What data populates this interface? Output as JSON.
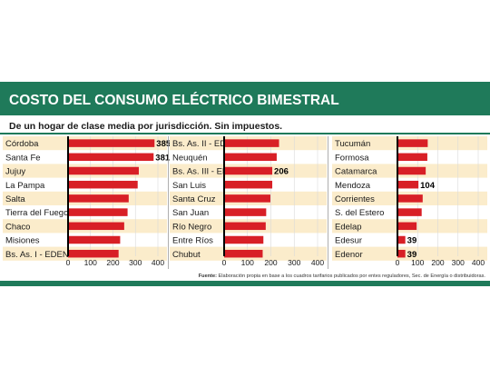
{
  "header": {
    "title": "COSTO DEL CONSUMO ELÉCTRICO BIMESTRAL",
    "subtitle": "De un hogar de clase media por jurisdicción. Sin impuestos."
  },
  "footer": {
    "source_label": "Fuente:",
    "source_text": "Elaboración propia en base a los cuadros tarifarios publicados por entes reguladores, Sec. de Energía o distribuidoras."
  },
  "colors": {
    "header_green": "#1f7a5a",
    "bar_red": "#d81f26",
    "stripe": "#fbeccb",
    "axis": "#000000"
  },
  "chart_data": [
    {
      "type": "bar",
      "orientation": "horizontal",
      "categories": [
        "Córdoba",
        "Santa Fe",
        "Jujuy",
        "La Pampa",
        "Salta",
        "Tierra del Fuego",
        "Chaco",
        "Misiones",
        "Bs. As. I - EDEN"
      ],
      "values": [
        385,
        381,
        315,
        310,
        270,
        265,
        250,
        232,
        225
      ],
      "value_labels": [
        "385",
        "381",
        "",
        "",
        "",
        "",
        "",
        "",
        ""
      ],
      "xlim": [
        0,
        400
      ],
      "xticks": [
        0,
        100,
        200,
        300,
        400
      ]
    },
    {
      "type": "bar",
      "orientation": "horizontal",
      "categories": [
        "Bs. As. II - EDEA",
        "Neuquén",
        "Bs. As. III - EDEA",
        "San Luis",
        "Santa Cruz",
        "San Juan",
        "Río Negro",
        "Entre Ríos",
        "Chubut"
      ],
      "values": [
        235,
        225,
        206,
        206,
        198,
        180,
        178,
        168,
        165
      ],
      "value_labels": [
        "",
        "",
        "206",
        "",
        "",
        "",
        "",
        "",
        ""
      ],
      "xlim": [
        0,
        400
      ],
      "xticks": [
        0,
        100,
        200,
        300,
        400
      ]
    },
    {
      "type": "bar",
      "orientation": "horizontal",
      "categories": [
        "Tucumán",
        "Formosa",
        "Catamarca",
        "Mendoza",
        "Corrientes",
        "S. del Estero",
        "Edelap",
        "Edesur",
        "Edenor"
      ],
      "values": [
        150,
        148,
        140,
        104,
        125,
        120,
        95,
        39,
        39
      ],
      "value_labels": [
        "",
        "",
        "",
        "104",
        "",
        "",
        "",
        "39",
        "39"
      ],
      "xlim": [
        0,
        400
      ],
      "xticks": [
        0,
        100,
        200,
        300,
        400
      ]
    }
  ]
}
